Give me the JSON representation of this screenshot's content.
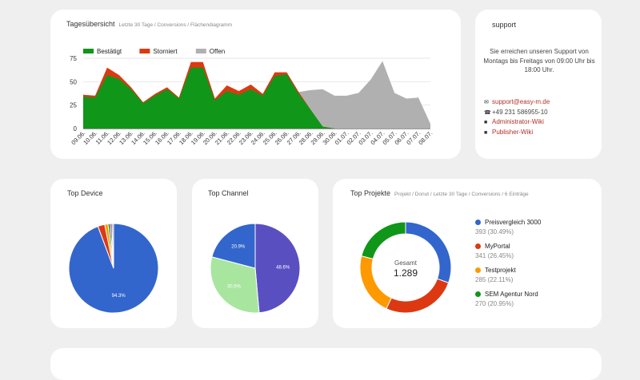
{
  "tagesuebersicht": {
    "title": "Tagesübersicht",
    "subtitle": "Letzte 30 Tage / Conversions / Flächendiagramm"
  },
  "support": {
    "title": "support",
    "text": "Sie erreichen unseren Support von Montags bis Freitags von 09:00 Uhr bis 18:00 Uhr.",
    "email": "support@easy-m.de",
    "phone": "+49 231 586955-10",
    "admin_wiki": "Administrator-Wiki",
    "publisher_wiki": "Publisher-Wiki"
  },
  "top_device": {
    "title": "Top Device"
  },
  "top_channel": {
    "title": "Top Channel"
  },
  "top_projekte": {
    "title": "Top Projekte",
    "subtitle": "Projekt / Donut / Letzte 30 Tage / Conversions / 6 Einträge",
    "center_label": "Gesamt",
    "center_value": "1.289",
    "items": [
      {
        "name": "Preisvergleich 3000",
        "value": "393 (30.49%)",
        "color": "#3366cc"
      },
      {
        "name": "MyPortal",
        "value": "341 (26.45%)",
        "color": "#dc3912"
      },
      {
        "name": "Testprojekt",
        "value": "285 (22.11%)",
        "color": "#ff9900"
      },
      {
        "name": "SEM Agentur Nord",
        "value": "270 (20.95%)",
        "color": "#109618"
      }
    ]
  },
  "chart_data": [
    {
      "type": "area",
      "legend_position": "top-left",
      "ylim": [
        0,
        75
      ],
      "yticks": [
        0,
        25,
        50,
        75
      ],
      "grid": true,
      "x": [
        "09.06.",
        "10.06.",
        "11.06.",
        "12.06.",
        "13.06.",
        "14.06.",
        "15.06.",
        "16.06.",
        "17.06.",
        "18.06.",
        "19.06.",
        "20.06.",
        "21.06.",
        "22.06.",
        "23.06.",
        "24.06.",
        "25.06.",
        "26.06.",
        "27.06.",
        "28.06.",
        "29.06.",
        "30.06.",
        "01.07.",
        "02.07.",
        "03.07.",
        "04.07.",
        "05.07.",
        "06.07.",
        "07.07.",
        "08.07."
      ],
      "series": [
        {
          "name": "Bestätigt",
          "color": "#109618",
          "values": [
            34,
            33,
            57,
            53,
            42,
            27,
            35,
            42,
            32,
            65,
            65,
            30,
            40,
            36,
            42,
            35,
            56,
            58,
            37,
            20,
            2,
            0,
            0,
            0,
            0,
            0,
            0,
            0,
            0,
            0
          ]
        },
        {
          "name": "Storniert",
          "color": "#dc3912",
          "values": [
            2,
            2,
            8,
            4,
            2,
            1,
            2,
            2,
            1,
            6,
            6,
            2,
            6,
            4,
            5,
            2,
            4,
            2,
            2,
            0,
            0,
            0,
            0,
            0,
            0,
            0,
            0,
            0,
            0,
            0
          ]
        },
        {
          "name": "Offen",
          "color": "#b0b0b0",
          "values": [
            0,
            0,
            0,
            0,
            0,
            0,
            0,
            0,
            0,
            0,
            0,
            0,
            0,
            0,
            0,
            0,
            0,
            0,
            0,
            21,
            40,
            35,
            35,
            38,
            52,
            72,
            38,
            32,
            33,
            38
          ]
        }
      ],
      "last_value_total": 5
    },
    {
      "type": "pie",
      "title": "Top Device",
      "slices": [
        {
          "value": 94.3,
          "color": "#3366cc",
          "label": "94.3%"
        },
        {
          "value": 2.5,
          "color": "#dc3912"
        },
        {
          "value": 1.2,
          "color": "#ff9900"
        },
        {
          "value": 0.8,
          "color": "#109618"
        },
        {
          "value": 0.6,
          "color": "#990099"
        },
        {
          "value": 0.6,
          "color": "#aaaaaa"
        }
      ]
    },
    {
      "type": "pie",
      "title": "Top Channel",
      "slices": [
        {
          "value": 48.6,
          "color": "#5a4fc1",
          "label": "48.6%"
        },
        {
          "value": 30.5,
          "color": "#a8e6a0",
          "label": "30.5%"
        },
        {
          "value": 20.9,
          "color": "#3366cc",
          "label": "20.9%"
        }
      ]
    },
    {
      "type": "pie",
      "title": "Top Projekte",
      "donut": true,
      "slices": [
        {
          "value": 393,
          "color": "#3366cc"
        },
        {
          "value": 341,
          "color": "#dc3912"
        },
        {
          "value": 285,
          "color": "#ff9900"
        },
        {
          "value": 270,
          "color": "#109618"
        }
      ]
    }
  ]
}
